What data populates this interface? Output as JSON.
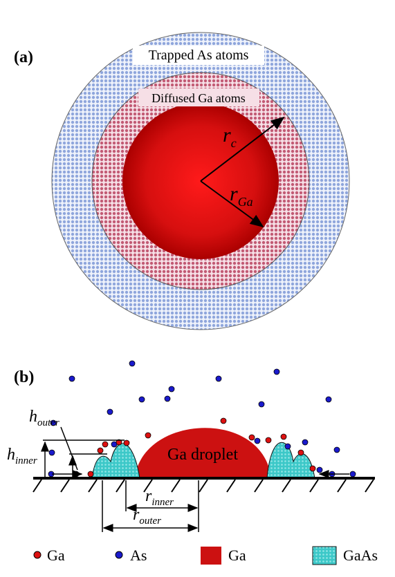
{
  "panel_a": {
    "label": "(a)",
    "outer_ring": "Trapped As atoms",
    "middle_ring": "Diffused Ga atoms",
    "r_c": {
      "symbol": "r",
      "subscript": "c"
    },
    "r_ga": {
      "symbol": "r",
      "subscript": "Ga"
    }
  },
  "panel_b": {
    "label": "(b)",
    "h_outer": {
      "symbol": "h",
      "subscript": "outer"
    },
    "h_inner": {
      "symbol": "h",
      "subscript": "inner"
    },
    "droplet": "Ga droplet",
    "r_inner": {
      "symbol": "r",
      "subscript": "inner"
    },
    "r_outer": {
      "symbol": "r",
      "subscript": "outer"
    }
  },
  "legend": [
    "Ga",
    "As",
    "Ga",
    "GaAs"
  ]
}
